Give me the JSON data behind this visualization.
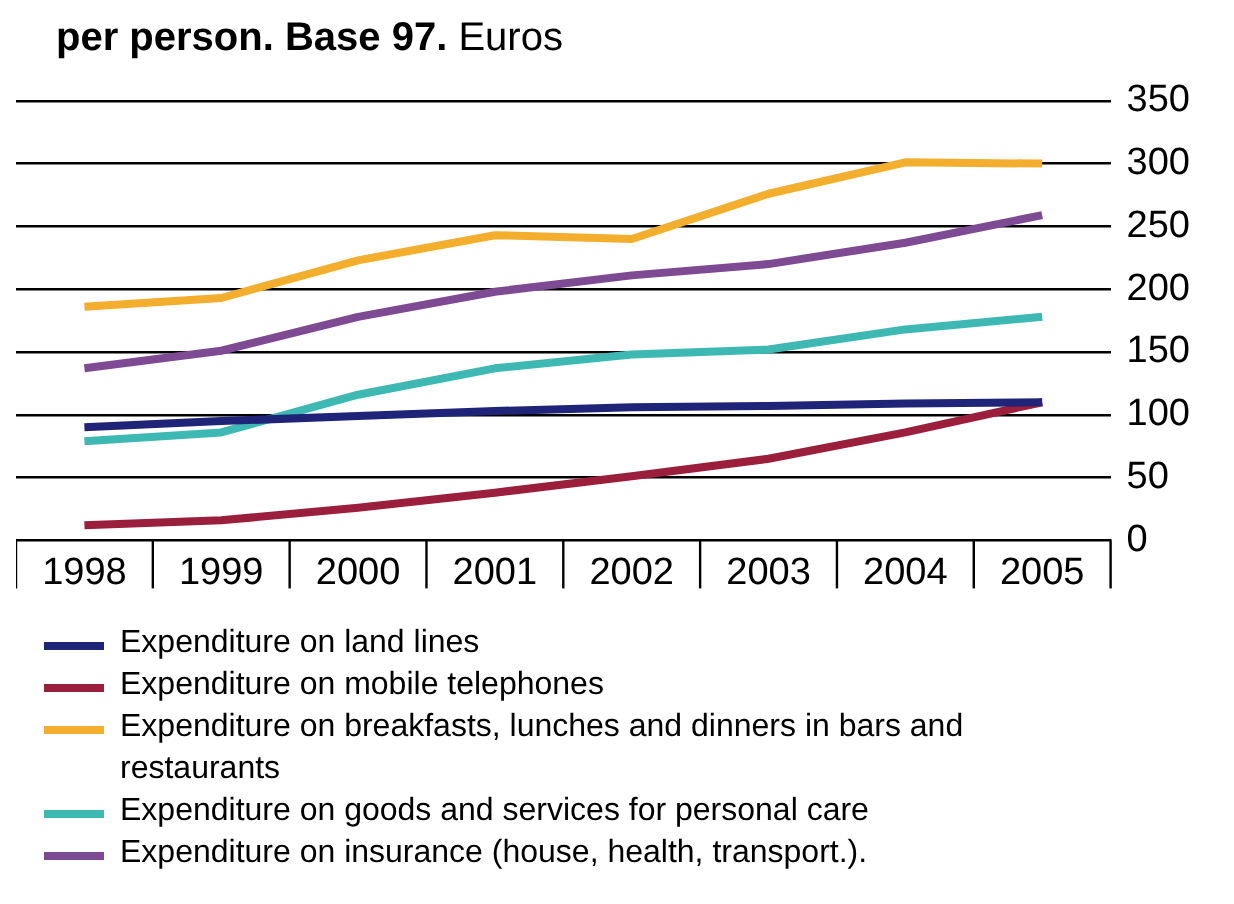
{
  "chart_data": {
    "type": "line",
    "title": "per person. Base 97.",
    "subtitle": "Euros",
    "categories": [
      "1998",
      "1999",
      "2000",
      "2001",
      "2002",
      "2003",
      "2004",
      "2005"
    ],
    "series": [
      {
        "name": "Expenditure on land lines",
        "color": "#1f2478",
        "values": [
          90,
          95,
          99,
          103,
          106,
          107,
          109,
          110
        ]
      },
      {
        "name": "Expenditure on mobile telephones",
        "color": "#9b1e3c",
        "values": [
          12,
          16,
          26,
          38,
          51,
          65,
          86,
          110
        ]
      },
      {
        "name": "Expenditure on breakfasts, lunches and dinners in bars and restaurants",
        "color": "#f3ae2d",
        "values": [
          186,
          193,
          223,
          243,
          240,
          276,
          301,
          300
        ]
      },
      {
        "name": "Expenditure on goods and services for personal care",
        "color": "#3db8b2",
        "values": [
          79,
          86,
          116,
          137,
          148,
          152,
          168,
          178
        ]
      },
      {
        "name": "Expenditure on insurance (house, health, transport.).",
        "color": "#7d4a93",
        "values": [
          137,
          151,
          178,
          198,
          211,
          220,
          237,
          259
        ]
      }
    ],
    "ylim": [
      0,
      350
    ],
    "yticks": [
      0,
      50,
      100,
      150,
      200,
      250,
      300,
      350
    ],
    "grid": "y",
    "legend": "bottom",
    "marker": "none",
    "line_style": "solid"
  }
}
